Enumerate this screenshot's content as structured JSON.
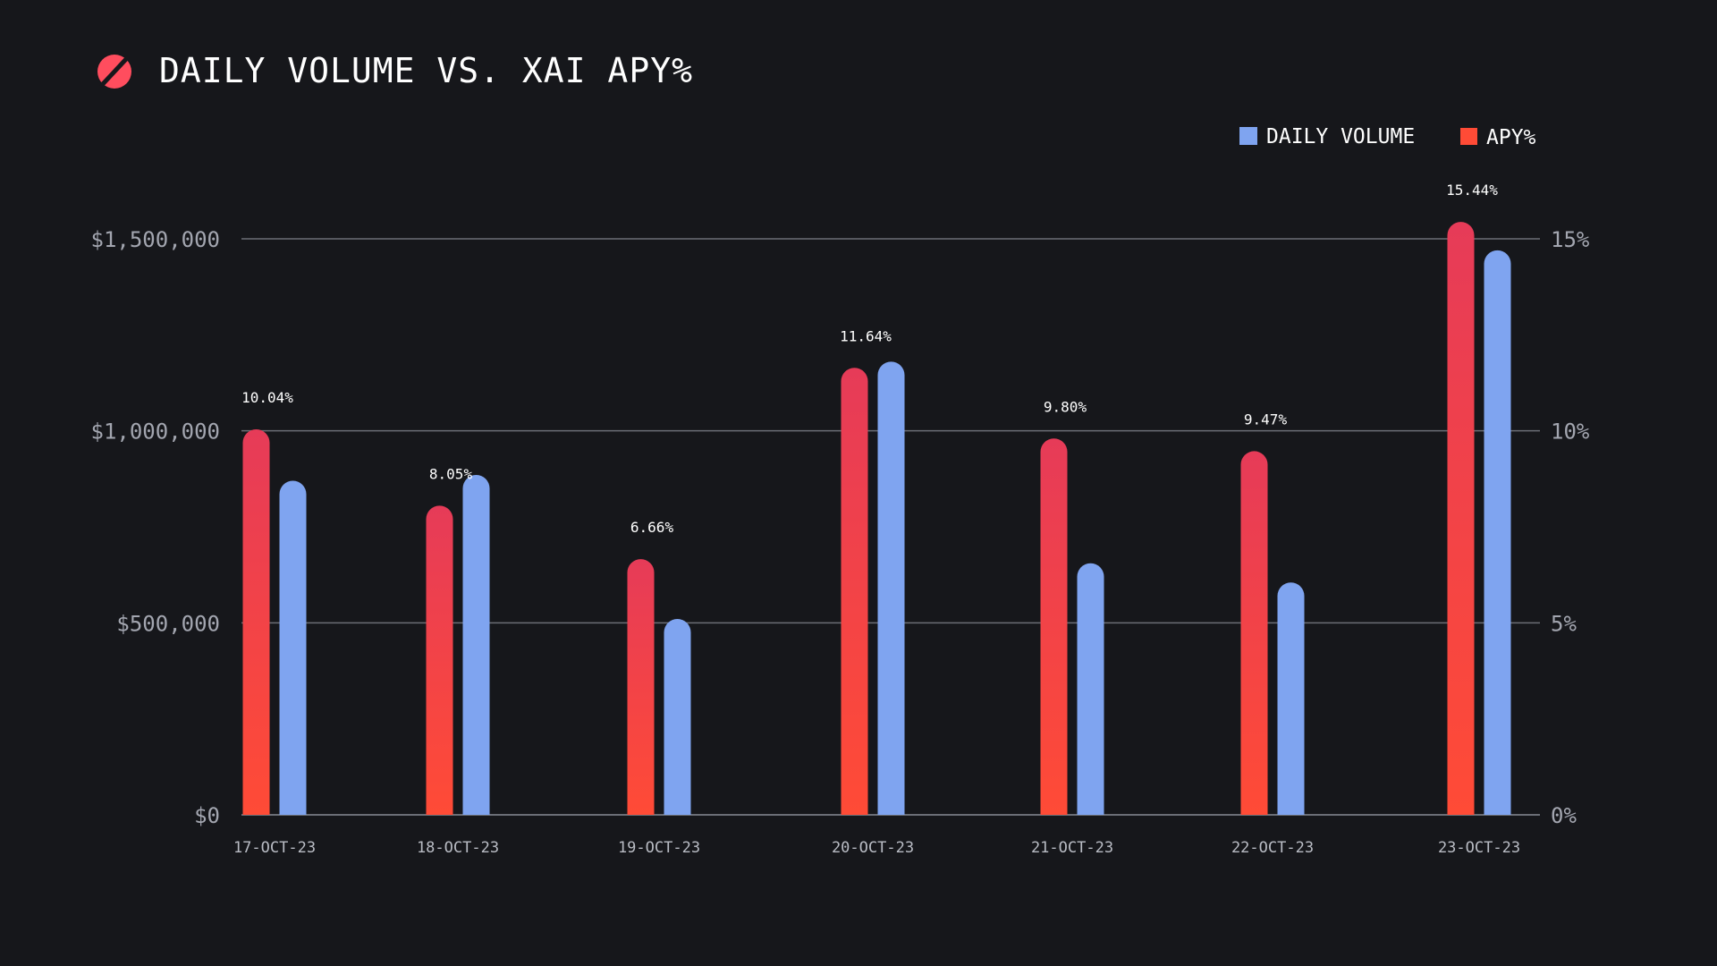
{
  "title": "DAILY VOLUME VS. XAI APY%",
  "logo_icon": "slashed-circle-logo-icon",
  "colors": {
    "background": "#16171b",
    "volume": "#7fa4f0",
    "apy_top": "#e63b58",
    "apy_bottom": "#ff4b36",
    "grid": "#6b6e76",
    "text": "#ffffff",
    "axis_text": "#a3a6b0"
  },
  "chart_data": {
    "type": "bar",
    "title": "DAILY VOLUME VS. XAI APY%",
    "categories": [
      "17-OCT-23",
      "18-OCT-23",
      "19-OCT-23",
      "20-OCT-23",
      "21-OCT-23",
      "22-OCT-23",
      "23-OCT-23"
    ],
    "series": [
      {
        "name": "APY%",
        "axis": "right",
        "values": [
          10.04,
          8.05,
          6.66,
          11.64,
          9.8,
          9.47,
          15.44
        ],
        "labels": [
          "10.04%",
          "8.05%",
          "6.66%",
          "11.64%",
          "9.80%",
          "9.47%",
          "15.44%"
        ]
      },
      {
        "name": "DAILY VOLUME",
        "axis": "left",
        "values": [
          870000,
          885000,
          510000,
          1180000,
          655000,
          605000,
          1470000
        ]
      }
    ],
    "y_left": {
      "range": [
        0,
        1500000
      ],
      "ticks": [
        0,
        500000,
        1000000,
        1500000
      ],
      "tick_labels": [
        "$0",
        "$500,000",
        "$1,000,000",
        "$1,500,000"
      ]
    },
    "y_right": {
      "range": [
        0,
        15
      ],
      "ticks": [
        0,
        5,
        10,
        15
      ],
      "tick_labels": [
        "0%",
        "5%",
        "10%",
        "15%"
      ]
    },
    "legend": {
      "placement": "top-right",
      "entries": [
        "DAILY VOLUME",
        "APY%"
      ]
    },
    "grid": true
  }
}
